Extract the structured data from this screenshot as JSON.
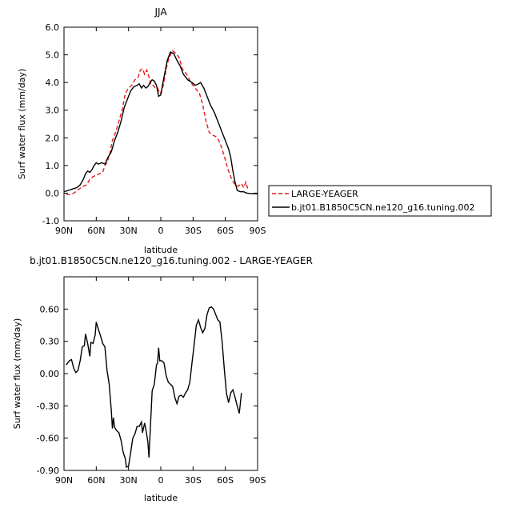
{
  "chart_data": [
    {
      "type": "line",
      "title": "JJA",
      "xlabel": "latitude",
      "ylabel": "Surf water flux (mm/day)",
      "xlim": [
        90,
        -90
      ],
      "ylim": [
        -1.0,
        6.0
      ],
      "xticks": [
        {
          "v": 90,
          "label": "90N"
        },
        {
          "v": 60,
          "label": "60N"
        },
        {
          "v": 30,
          "label": "30N"
        },
        {
          "v": 0,
          "label": "0"
        },
        {
          "v": -30,
          "label": "30S"
        },
        {
          "v": -60,
          "label": "60S"
        },
        {
          "v": -90,
          "label": "90S"
        }
      ],
      "yticks": [
        {
          "v": -1.0,
          "label": "-1.0"
        },
        {
          "v": 0.0,
          "label": "0.0"
        },
        {
          "v": 1.0,
          "label": "1.0"
        },
        {
          "v": 2.0,
          "label": "2.0"
        },
        {
          "v": 3.0,
          "label": "3.0"
        },
        {
          "v": 4.0,
          "label": "4.0"
        },
        {
          "v": 5.0,
          "label": "5.0"
        },
        {
          "v": 6.0,
          "label": "6.0"
        }
      ],
      "legend_position": "right",
      "series": [
        {
          "name": "LARGE-YEAGER",
          "color": "#e41a1c",
          "dash": "dashed",
          "points": [
            [
              88,
              -0.05
            ],
            [
              84,
              -0.05
            ],
            [
              80,
              0.02
            ],
            [
              76,
              0.15
            ],
            [
              72,
              0.25
            ],
            [
              69,
              0.3
            ],
            [
              66,
              0.5
            ],
            [
              63,
              0.6
            ],
            [
              60,
              0.65
            ],
            [
              57,
              0.7
            ],
            [
              54,
              0.75
            ],
            [
              52,
              1.0
            ],
            [
              50,
              1.1
            ],
            [
              47,
              1.5
            ],
            [
              45,
              1.9
            ],
            [
              42,
              2.2
            ],
            [
              39,
              2.6
            ],
            [
              36,
              3.0
            ],
            [
              33,
              3.6
            ],
            [
              30,
              3.8
            ],
            [
              27,
              3.9
            ],
            [
              24,
              4.1
            ],
            [
              21,
              4.2
            ],
            [
              19,
              4.45
            ],
            [
              17,
              4.5
            ],
            [
              15,
              4.3
            ],
            [
              13,
              4.45
            ],
            [
              11,
              4.2
            ],
            [
              9,
              3.9
            ],
            [
              7,
              3.9
            ],
            [
              5,
              3.8
            ],
            [
              3,
              3.8
            ],
            [
              1,
              3.6
            ],
            [
              -1,
              3.7
            ],
            [
              -3,
              4.0
            ],
            [
              -5,
              4.5
            ],
            [
              -7,
              4.8
            ],
            [
              -9,
              5.0
            ],
            [
              -11,
              5.15
            ],
            [
              -14,
              5.05
            ],
            [
              -17,
              4.9
            ],
            [
              -20,
              4.5
            ],
            [
              -24,
              4.3
            ],
            [
              -28,
              4.0
            ],
            [
              -32,
              3.8
            ],
            [
              -36,
              3.6
            ],
            [
              -39,
              3.2
            ],
            [
              -42,
              2.6
            ],
            [
              -45,
              2.2
            ],
            [
              -48,
              2.1
            ],
            [
              -51,
              2.05
            ],
            [
              -54,
              1.9
            ],
            [
              -57,
              1.6
            ],
            [
              -60,
              1.2
            ],
            [
              -63,
              0.8
            ],
            [
              -66,
              0.5
            ],
            [
              -69,
              0.3
            ],
            [
              -72,
              0.25
            ],
            [
              -75,
              0.35
            ],
            [
              -77,
              0.2
            ],
            [
              -79,
              0.4
            ],
            [
              -81,
              0.15
            ]
          ]
        },
        {
          "name": "b.jt01.B1850C5CN.ne120_g16.tuning.002",
          "color": "#000000",
          "dash": "solid",
          "points": [
            [
              90,
              0.05
            ],
            [
              86,
              0.1
            ],
            [
              82,
              0.15
            ],
            [
              78,
              0.2
            ],
            [
              75,
              0.3
            ],
            [
              72,
              0.5
            ],
            [
              70,
              0.7
            ],
            [
              68,
              0.8
            ],
            [
              66,
              0.75
            ],
            [
              64,
              0.85
            ],
            [
              62,
              1.0
            ],
            [
              60,
              1.1
            ],
            [
              58,
              1.05
            ],
            [
              55,
              1.1
            ],
            [
              52,
              1.05
            ],
            [
              49,
              1.3
            ],
            [
              46,
              1.5
            ],
            [
              43,
              1.9
            ],
            [
              40,
              2.2
            ],
            [
              37,
              2.6
            ],
            [
              34,
              3.1
            ],
            [
              31,
              3.4
            ],
            [
              28,
              3.7
            ],
            [
              25,
              3.85
            ],
            [
              22,
              3.9
            ],
            [
              20,
              3.95
            ],
            [
              18,
              3.8
            ],
            [
              16,
              3.9
            ],
            [
              14,
              3.8
            ],
            [
              12,
              3.85
            ],
            [
              10,
              4.0
            ],
            [
              8,
              4.1
            ],
            [
              6,
              4.05
            ],
            [
              4,
              3.9
            ],
            [
              2,
              3.5
            ],
            [
              0,
              3.55
            ],
            [
              -2,
              4.0
            ],
            [
              -4,
              4.4
            ],
            [
              -6,
              4.8
            ],
            [
              -9,
              5.1
            ],
            [
              -12,
              5.05
            ],
            [
              -15,
              4.8
            ],
            [
              -18,
              4.6
            ],
            [
              -21,
              4.3
            ],
            [
              -25,
              4.1
            ],
            [
              -29,
              4.0
            ],
            [
              -32,
              3.9
            ],
            [
              -35,
              3.95
            ],
            [
              -37,
              4.0
            ],
            [
              -40,
              3.8
            ],
            [
              -43,
              3.5
            ],
            [
              -46,
              3.2
            ],
            [
              -50,
              2.9
            ],
            [
              -54,
              2.5
            ],
            [
              -57,
              2.2
            ],
            [
              -60,
              1.9
            ],
            [
              -63,
              1.6
            ],
            [
              -65,
              1.3
            ],
            [
              -67,
              0.8
            ],
            [
              -69,
              0.4
            ],
            [
              -71,
              0.1
            ],
            [
              -74,
              0.05
            ],
            [
              -77,
              0.05
            ],
            [
              -80,
              0.0
            ],
            [
              -84,
              -0.02
            ],
            [
              -88,
              -0.02
            ],
            [
              -90,
              -0.03
            ]
          ]
        }
      ]
    },
    {
      "type": "line",
      "title": "b.jt01.B1850C5CN.ne120_g16.tuning.002 - LARGE-YEAGER",
      "xlabel": "latitude",
      "ylabel": "Surf water flux (mm/day)",
      "xlim": [
        90,
        -90
      ],
      "ylim": [
        -0.9,
        0.9
      ],
      "xticks": [
        {
          "v": 90,
          "label": "90N"
        },
        {
          "v": 60,
          "label": "60N"
        },
        {
          "v": 30,
          "label": "30N"
        },
        {
          "v": 0,
          "label": "0"
        },
        {
          "v": -30,
          "label": "30S"
        },
        {
          "v": -60,
          "label": "60S"
        },
        {
          "v": -90,
          "label": "90S"
        }
      ],
      "yticks": [
        {
          "v": -0.9,
          "label": "-0.90"
        },
        {
          "v": -0.6,
          "label": "-0.60"
        },
        {
          "v": -0.3,
          "label": "-0.30"
        },
        {
          "v": 0.0,
          "label": "0.00"
        },
        {
          "v": 0.3,
          "label": "0.30"
        },
        {
          "v": 0.6,
          "label": "0.60"
        }
      ],
      "series": [
        {
          "color": "#000000",
          "dash": "solid",
          "points": [
            [
              88,
              0.08
            ],
            [
              85,
              0.12
            ],
            [
              83,
              0.13
            ],
            [
              81,
              0.05
            ],
            [
              79,
              0.01
            ],
            [
              77,
              0.03
            ],
            [
              75,
              0.12
            ],
            [
              73,
              0.25
            ],
            [
              71,
              0.26
            ],
            [
              70,
              0.37
            ],
            [
              68,
              0.28
            ],
            [
              66,
              0.16
            ],
            [
              65,
              0.29
            ],
            [
              63,
              0.28
            ],
            [
              61,
              0.36
            ],
            [
              60,
              0.48
            ],
            [
              58,
              0.41
            ],
            [
              56,
              0.35
            ],
            [
              54,
              0.28
            ],
            [
              52,
              0.25
            ],
            [
              50,
              0.03
            ],
            [
              48,
              -0.1
            ],
            [
              46,
              -0.35
            ],
            [
              45,
              -0.51
            ],
            [
              44,
              -0.41
            ],
            [
              43,
              -0.5
            ],
            [
              41,
              -0.53
            ],
            [
              39,
              -0.55
            ],
            [
              37,
              -0.62
            ],
            [
              35,
              -0.73
            ],
            [
              33,
              -0.79
            ],
            [
              32,
              -0.87
            ],
            [
              30,
              -0.86
            ],
            [
              28,
              -0.73
            ],
            [
              26,
              -0.6
            ],
            [
              24,
              -0.56
            ],
            [
              22,
              -0.49
            ],
            [
              20,
              -0.49
            ],
            [
              18,
              -0.45
            ],
            [
              17,
              -0.55
            ],
            [
              15,
              -0.46
            ],
            [
              13,
              -0.57
            ],
            [
              12,
              -0.64
            ],
            [
              11,
              -0.78
            ],
            [
              10,
              -0.56
            ],
            [
              8,
              -0.16
            ],
            [
              6,
              -0.1
            ],
            [
              4,
              0.08
            ],
            [
              3,
              0.1
            ],
            [
              2,
              0.24
            ],
            [
              1,
              0.12
            ],
            [
              -1,
              0.12
            ],
            [
              -3,
              0.1
            ],
            [
              -5,
              -0.02
            ],
            [
              -7,
              -0.08
            ],
            [
              -9,
              -0.1
            ],
            [
              -11,
              -0.12
            ],
            [
              -13,
              -0.22
            ],
            [
              -15,
              -0.28
            ],
            [
              -17,
              -0.21
            ],
            [
              -19,
              -0.2
            ],
            [
              -21,
              -0.22
            ],
            [
              -23,
              -0.18
            ],
            [
              -25,
              -0.15
            ],
            [
              -27,
              -0.08
            ],
            [
              -29,
              0.1
            ],
            [
              -31,
              0.27
            ],
            [
              -33,
              0.45
            ],
            [
              -35,
              0.5
            ],
            [
              -37,
              0.43
            ],
            [
              -39,
              0.38
            ],
            [
              -41,
              0.42
            ],
            [
              -43,
              0.55
            ],
            [
              -45,
              0.61
            ],
            [
              -47,
              0.62
            ],
            [
              -49,
              0.6
            ],
            [
              -51,
              0.55
            ],
            [
              -53,
              0.5
            ],
            [
              -55,
              0.48
            ],
            [
              -57,
              0.3
            ],
            [
              -59,
              0.05
            ],
            [
              -61,
              -0.18
            ],
            [
              -63,
              -0.27
            ],
            [
              -65,
              -0.18
            ],
            [
              -67,
              -0.15
            ],
            [
              -69,
              -0.22
            ],
            [
              -71,
              -0.3
            ],
            [
              -73,
              -0.37
            ],
            [
              -75,
              -0.18
            ]
          ]
        }
      ]
    }
  ]
}
